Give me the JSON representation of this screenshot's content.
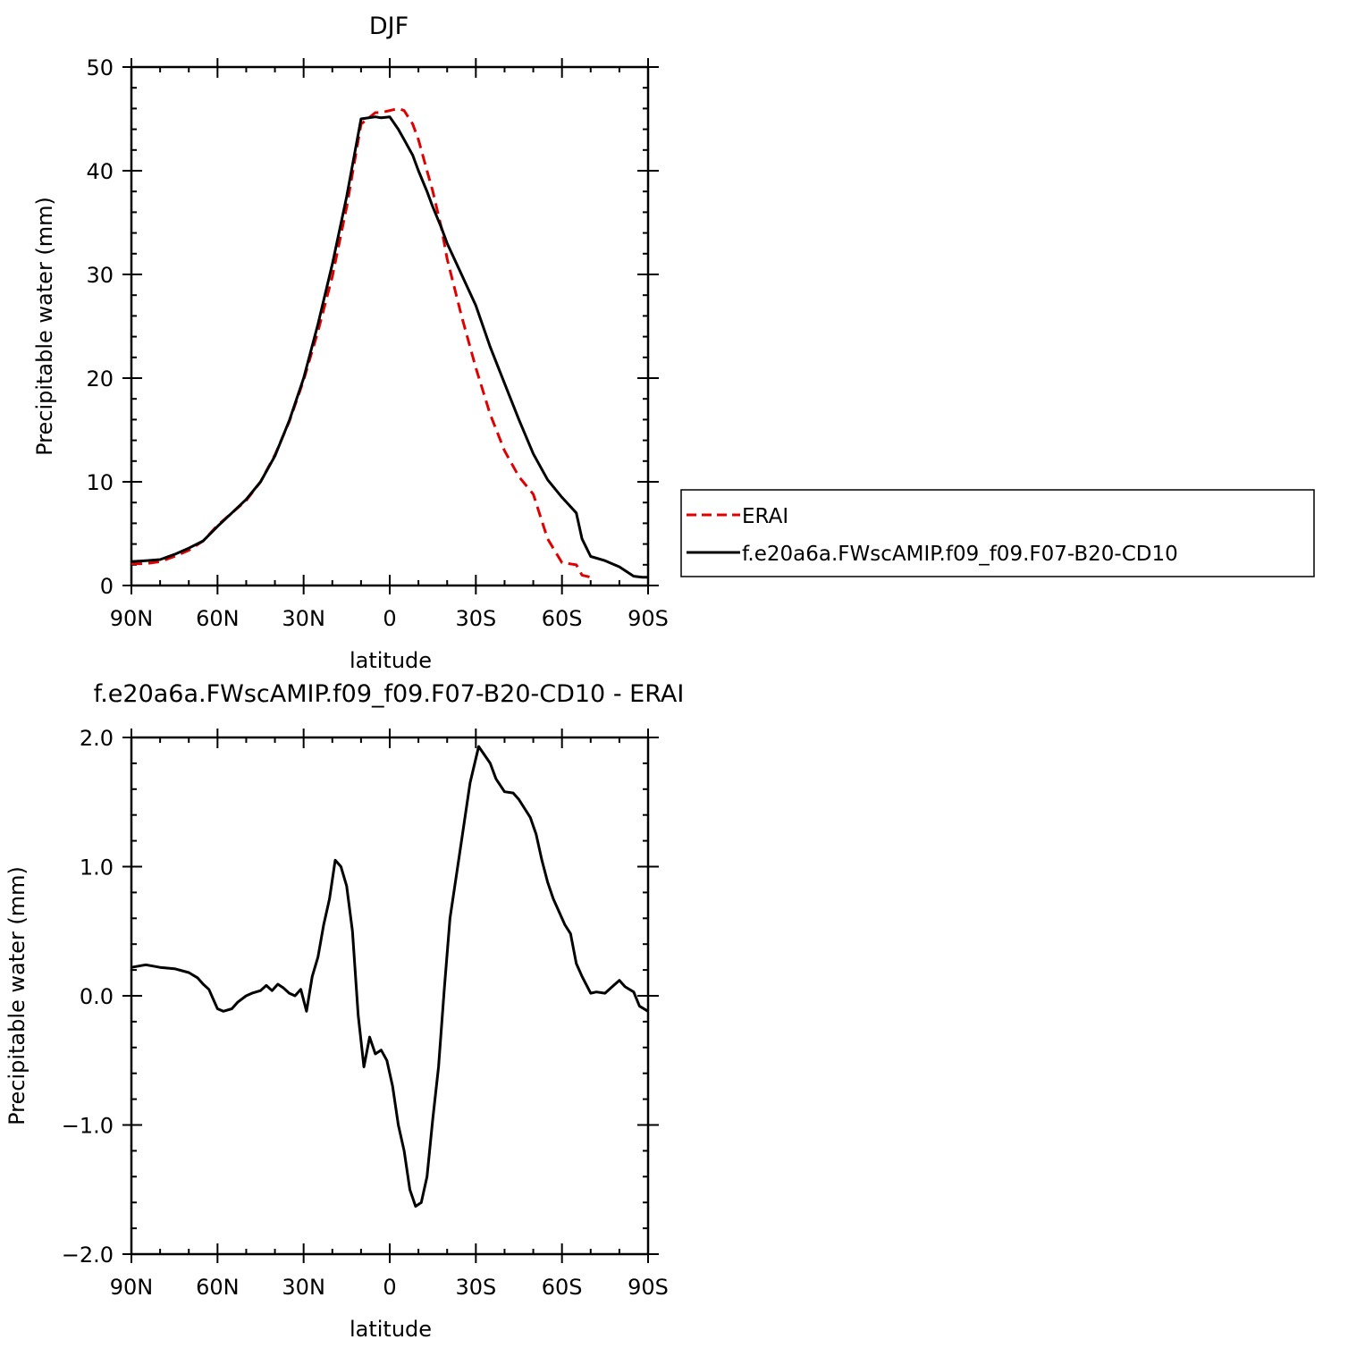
{
  "chart_data": [
    {
      "type": "line",
      "title": "DJF",
      "xlabel": "latitude",
      "ylabel": "Precipitable water (mm)",
      "xlim": [
        -90,
        90
      ],
      "ylim": [
        0,
        50
      ],
      "x_ticks": [
        -90,
        -60,
        -30,
        0,
        30,
        60,
        90
      ],
      "x_tick_labels": [
        "90N",
        "60N",
        "30N",
        "0",
        "30S",
        "60S",
        "90S"
      ],
      "y_ticks": [
        0,
        10,
        20,
        30,
        40,
        50
      ],
      "y_tick_labels": [
        "0",
        "10",
        "20",
        "30",
        "40",
        "50"
      ],
      "legend": {
        "placement": "right"
      },
      "series": [
        {
          "name": "ERAI",
          "color": "#e00000",
          "dash": "dashed",
          "x": [
            -90,
            -85,
            -80,
            -75,
            -70,
            -65,
            -60,
            -55,
            -50,
            -45,
            -40,
            -35,
            -30,
            -25,
            -20,
            -15,
            -10,
            -5,
            -3,
            0,
            3,
            5,
            8,
            10,
            13,
            15,
            18,
            20,
            25,
            30,
            35,
            40,
            45,
            50,
            55,
            60,
            65,
            67,
            70,
            75,
            80,
            85,
            88,
            90
          ],
          "y": [
            2.1,
            2.1,
            2.3,
            2.8,
            3.4,
            4.3,
            5.8,
            7.0,
            8.2,
            10.0,
            12.6,
            15.8,
            19.8,
            24.5,
            29.8,
            36.5,
            44.5,
            45.6,
            45.6,
            45.8,
            46.0,
            45.8,
            44.5,
            43.0,
            40.0,
            38.0,
            34.5,
            31.5,
            26.0,
            21.0,
            16.5,
            13.0,
            10.5,
            8.8,
            4.5,
            2.2,
            2.0,
            1.0,
            0.8,
            null,
            null,
            null,
            null,
            null
          ]
        },
        {
          "name": "f.e20a6a.FWscAMIP.f09_f09.F07-B20-CD10",
          "color": "#000000",
          "dash": "solid",
          "x": [
            -90,
            -85,
            -80,
            -75,
            -70,
            -65,
            -60,
            -55,
            -50,
            -45,
            -40,
            -35,
            -30,
            -25,
            -20,
            -15,
            -10,
            -5,
            -3,
            0,
            3,
            5,
            8,
            10,
            13,
            15,
            18,
            20,
            25,
            30,
            35,
            40,
            45,
            50,
            55,
            60,
            65,
            67,
            70,
            75,
            80,
            85,
            88,
            90
          ],
          "y": [
            2.3,
            2.4,
            2.5,
            3.0,
            3.6,
            4.3,
            5.7,
            7.0,
            8.3,
            10.0,
            12.5,
            15.9,
            20.0,
            25.2,
            31.0,
            37.5,
            45.0,
            45.2,
            45.1,
            45.2,
            44.0,
            43.0,
            41.5,
            40.0,
            38.0,
            36.5,
            34.5,
            33.0,
            30.0,
            27.0,
            23.0,
            19.5,
            16.0,
            12.7,
            10.2,
            8.5,
            7.0,
            4.5,
            2.8,
            2.4,
            1.8,
            0.9,
            0.8,
            0.8
          ]
        }
      ]
    },
    {
      "type": "line",
      "title": "f.e20a6a.FWscAMIP.f09_f09.F07-B20-CD10 - ERAI",
      "xlabel": "latitude",
      "ylabel": "Precipitable water (mm)",
      "xlim": [
        -90,
        90
      ],
      "ylim": [
        -2.0,
        2.0
      ],
      "x_ticks": [
        -90,
        -60,
        -30,
        0,
        30,
        60,
        90
      ],
      "x_tick_labels": [
        "90N",
        "60N",
        "30N",
        "0",
        "30S",
        "60S",
        "90S"
      ],
      "y_ticks": [
        -2.0,
        -1.0,
        0.0,
        1.0,
        2.0
      ],
      "y_tick_labels": [
        "−2.0",
        "−1.0",
        "0.0",
        "1.0",
        "2.0"
      ],
      "series": [
        {
          "color": "#000000",
          "dash": "solid",
          "x": [
            -90,
            -85,
            -80,
            -75,
            -70,
            -67,
            -65,
            -63,
            -60,
            -58,
            -55,
            -53,
            -50,
            -48,
            -45,
            -43,
            -41,
            -39,
            -37,
            -35,
            -33,
            -31,
            -29,
            -27,
            -25,
            -23,
            -21,
            -19,
            -17,
            -15,
            -13,
            -11,
            -9,
            -7,
            -5,
            -3,
            -1,
            1,
            3,
            5,
            7,
            9,
            11,
            13,
            15,
            17,
            19,
            21,
            25,
            28,
            31,
            35,
            37,
            40,
            43,
            45,
            47,
            49,
            51,
            53,
            55,
            57,
            59,
            61,
            63,
            65,
            67,
            70,
            72,
            75,
            78,
            80,
            82,
            85,
            87,
            90
          ],
          "y": [
            0.22,
            0.24,
            0.22,
            0.21,
            0.18,
            0.14,
            0.09,
            0.05,
            -0.1,
            -0.12,
            -0.1,
            -0.05,
            0.0,
            0.02,
            0.04,
            0.08,
            0.04,
            0.09,
            0.06,
            0.02,
            0.0,
            0.05,
            -0.12,
            0.15,
            0.3,
            0.55,
            0.75,
            1.05,
            1.0,
            0.85,
            0.5,
            -0.15,
            -0.55,
            -0.32,
            -0.45,
            -0.42,
            -0.5,
            -0.7,
            -1.0,
            -1.2,
            -1.5,
            -1.63,
            -1.6,
            -1.4,
            -0.95,
            -0.55,
            0.05,
            0.6,
            1.2,
            1.65,
            1.93,
            1.8,
            1.68,
            1.58,
            1.57,
            1.52,
            1.45,
            1.38,
            1.25,
            1.05,
            0.88,
            0.75,
            0.65,
            0.55,
            0.48,
            0.25,
            0.15,
            0.02,
            0.03,
            0.02,
            0.08,
            0.12,
            0.07,
            0.03,
            -0.08,
            -0.12
          ]
        }
      ]
    }
  ]
}
